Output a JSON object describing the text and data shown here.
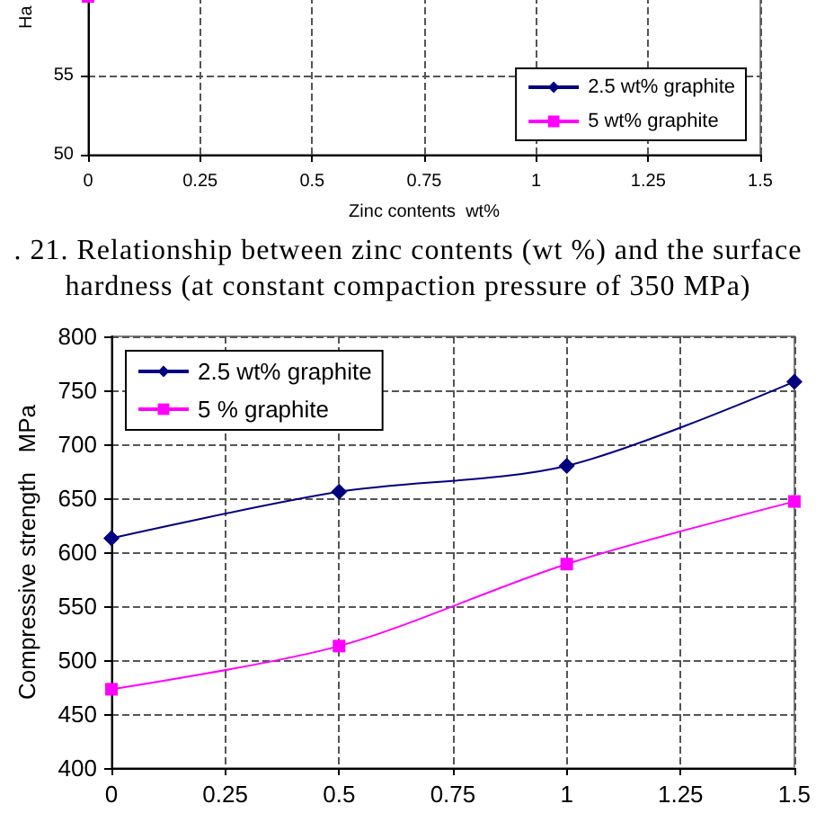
{
  "chart_data": [
    {
      "type": "line",
      "ylabel": "Ha",
      "xlabel": "Zinc contents  wt%",
      "annotations": [
        ". 21. Relationship between zinc contents (wt %) and the surface hardness (at constant compaction pressure of 350 MPa)"
      ],
      "xlim": [
        0,
        1.5
      ],
      "xticks": [
        0,
        0.25,
        0.5,
        0.75,
        1,
        1.25,
        1.5
      ],
      "ylim": [
        50,
        60
      ],
      "yticks": [
        50,
        55
      ],
      "grid": true,
      "legend": "bottom right",
      "series": [
        {
          "name": "2.5 wt% graphite",
          "color": "#000080",
          "marker": "diamond"
        },
        {
          "name": "5 wt% graphite",
          "color": "#ff00ff",
          "marker": "square",
          "x": [
            0
          ],
          "values": [
            60
          ]
        }
      ]
    },
    {
      "type": "line",
      "ylabel": "Compressive strength   MPa",
      "xlim": [
        0,
        1.5
      ],
      "xticks": [
        0,
        0.25,
        0.5,
        0.75,
        1,
        1.25,
        1.5
      ],
      "ylim": [
        400,
        800
      ],
      "yticks": [
        400,
        450,
        500,
        550,
        600,
        650,
        700,
        750,
        800
      ],
      "grid": true,
      "legend": "top left",
      "series": [
        {
          "name": "2.5 wt% graphite",
          "color": "#000080",
          "marker": "diamond",
          "x": [
            0,
            0.5,
            1,
            1.5
          ],
          "values": [
            613,
            656,
            680,
            758
          ]
        },
        {
          "name": "5 % graphite",
          "color": "#ff00ff",
          "marker": "square",
          "x": [
            0,
            0.5,
            1,
            1.5
          ],
          "values": [
            473,
            513,
            589,
            647
          ]
        }
      ]
    }
  ]
}
